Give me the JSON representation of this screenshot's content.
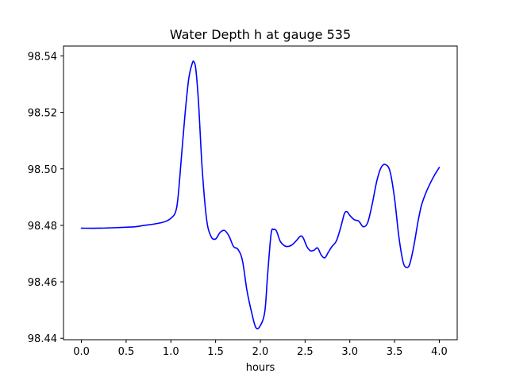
{
  "chart_data": {
    "type": "line",
    "title": "Water Depth h at gauge 535",
    "xlabel": "hours",
    "ylabel": "",
    "xlim": [
      -0.2,
      4.2
    ],
    "ylim": [
      98.4395,
      98.5435
    ],
    "xticks": [
      {
        "value": 0.0,
        "label": "0.0"
      },
      {
        "value": 0.5,
        "label": "0.5"
      },
      {
        "value": 1.0,
        "label": "1.0"
      },
      {
        "value": 1.5,
        "label": "1.5"
      },
      {
        "value": 2.0,
        "label": "2.0"
      },
      {
        "value": 2.5,
        "label": "2.5"
      },
      {
        "value": 3.0,
        "label": "3.0"
      },
      {
        "value": 3.5,
        "label": "3.5"
      },
      {
        "value": 4.0,
        "label": "4.0"
      }
    ],
    "yticks": [
      {
        "value": 98.44,
        "label": "98.44"
      },
      {
        "value": 98.46,
        "label": "98.46"
      },
      {
        "value": 98.48,
        "label": "98.48"
      },
      {
        "value": 98.5,
        "label": "98.50"
      },
      {
        "value": 98.52,
        "label": "98.52"
      },
      {
        "value": 98.54,
        "label": "98.54"
      }
    ],
    "grid": false,
    "series": [
      {
        "color": "#0000ff",
        "x": [
          0.0,
          0.2,
          0.4,
          0.6,
          0.7,
          0.8,
          0.9,
          0.95,
          1.0,
          1.05,
          1.08,
          1.12,
          1.16,
          1.2,
          1.24,
          1.26,
          1.28,
          1.31,
          1.35,
          1.4,
          1.45,
          1.5,
          1.55,
          1.6,
          1.65,
          1.7,
          1.75,
          1.8,
          1.85,
          1.9,
          1.95,
          2.0,
          2.05,
          2.08,
          2.12,
          2.15,
          2.18,
          2.22,
          2.26,
          2.3,
          2.35,
          2.4,
          2.45,
          2.48,
          2.52,
          2.56,
          2.6,
          2.64,
          2.68,
          2.72,
          2.76,
          2.8,
          2.85,
          2.9,
          2.94,
          2.97,
          3.0,
          3.05,
          3.1,
          3.15,
          3.2,
          3.25,
          3.3,
          3.35,
          3.4,
          3.45,
          3.5,
          3.55,
          3.6,
          3.65,
          3.68,
          3.72,
          3.76,
          3.8,
          3.85,
          3.9,
          3.95,
          4.0
        ],
        "y": [
          98.479,
          98.479,
          98.4792,
          98.4795,
          98.48,
          98.4804,
          98.481,
          98.4815,
          98.4825,
          98.4845,
          98.49,
          98.505,
          98.52,
          98.532,
          98.5375,
          98.5378,
          98.535,
          98.523,
          98.5,
          98.482,
          98.476,
          98.4752,
          98.4775,
          98.4782,
          98.4762,
          98.4725,
          98.4715,
          98.4675,
          98.457,
          98.4495,
          98.4438,
          98.4445,
          98.4495,
          98.462,
          98.477,
          98.4785,
          98.478,
          98.4745,
          98.473,
          98.4725,
          98.473,
          98.4745,
          98.4762,
          98.4755,
          98.4725,
          98.471,
          98.4712,
          98.472,
          98.4695,
          98.4685,
          98.4705,
          98.4725,
          98.4745,
          98.4795,
          98.4842,
          98.4848,
          98.4835,
          98.482,
          98.4815,
          98.4795,
          98.481,
          98.4875,
          98.4955,
          98.5005,
          98.5015,
          98.499,
          98.4895,
          98.4755,
          98.4665,
          98.4652,
          98.4675,
          98.4735,
          98.481,
          98.487,
          98.4915,
          98.495,
          98.498,
          98.5005
        ]
      }
    ]
  }
}
